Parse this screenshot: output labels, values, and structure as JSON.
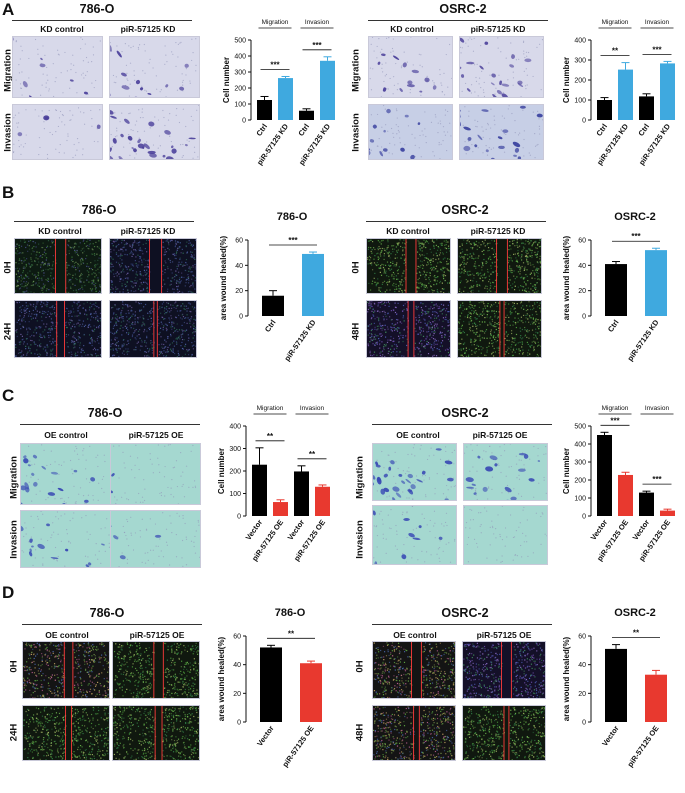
{
  "panels": [
    {
      "letter": "A",
      "cells": [
        {
          "cell_title": "786-O",
          "col_headers": [
            "KD control",
            "piR-57125 KD"
          ],
          "row_headers": [
            "Migration",
            "Invasion"
          ]
        },
        {
          "cell_title": "OSRC-2",
          "col_headers": [
            "KD control",
            "piR-57125 KD"
          ],
          "row_headers": [
            "Migration",
            "Invasion"
          ]
        }
      ]
    },
    {
      "letter": "B",
      "cells": [
        {
          "cell_title": "786-O",
          "col_headers": [
            "KD control",
            "piR-57125 KD"
          ],
          "row_headers": [
            "0H",
            "24H"
          ]
        },
        {
          "cell_title": "OSRC-2",
          "col_headers": [
            "KD control",
            "piR-57125 KD"
          ],
          "row_headers": [
            "0H",
            "48H"
          ]
        }
      ]
    },
    {
      "letter": "C",
      "cells": [
        {
          "cell_title": "786-O",
          "col_headers": [
            "OE control",
            "piR-57125 OE"
          ],
          "row_headers": [
            "Migration",
            "Invasion"
          ]
        },
        {
          "cell_title": "OSRC-2",
          "col_headers": [
            "OE control",
            "piR-57125 OE"
          ],
          "row_headers": [
            "Migration",
            "Invasion"
          ]
        }
      ]
    },
    {
      "letter": "D",
      "cells": [
        {
          "cell_title": "786-O",
          "col_headers": [
            "OE control",
            "piR-57125 OE"
          ],
          "row_headers": [
            "0H",
            "24H"
          ]
        },
        {
          "cell_title": "OSRC-2",
          "col_headers": [
            "OE control",
            "piR-57125 OE"
          ],
          "row_headers": [
            "0H",
            "48H"
          ]
        }
      ]
    }
  ],
  "colors": {
    "control": "#000000",
    "kd": "#3fa9df",
    "oe": "#e8392f",
    "transwell_kd_bg": "#d9dbea",
    "transwell_kd_cell": "#4a3f9a",
    "transwell_oe_bg": "#9fd6cf",
    "transwell_oe_cell": "#3b4bb0",
    "wound_edge": "#ff3b3b"
  },
  "chart_data": [
    {
      "id": "A-786O",
      "type": "bar",
      "title": "",
      "ylabel": "Cell number",
      "ylim": [
        0,
        500
      ],
      "yticks": [
        0,
        100,
        200,
        300,
        400,
        500
      ],
      "categories": [
        "Ctrl",
        "piR-57125 KD",
        "Ctrl",
        "piR-57125 KD"
      ],
      "values": [
        125,
        262,
        58,
        370
      ],
      "errors": [
        22,
        10,
        12,
        25
      ],
      "bar_colors": [
        "control",
        "kd",
        "control",
        "kd"
      ],
      "groups": [
        {
          "label": "Migration",
          "bars": [
            0,
            1
          ],
          "sig": "***"
        },
        {
          "label": "Invasion",
          "bars": [
            2,
            3
          ],
          "sig": "***"
        }
      ]
    },
    {
      "id": "A-OSRC2",
      "type": "bar",
      "title": "",
      "ylabel": "Cell number",
      "ylim": [
        0,
        400
      ],
      "yticks": [
        0,
        100,
        200,
        300,
        400
      ],
      "categories": [
        "Ctrl",
        "piR-57125 KD",
        "Ctrl",
        "piR-57125 KD"
      ],
      "values": [
        100,
        252,
        118,
        283
      ],
      "errors": [
        12,
        35,
        13,
        10
      ],
      "bar_colors": [
        "control",
        "kd",
        "control",
        "kd"
      ],
      "groups": [
        {
          "label": "Migration",
          "bars": [
            0,
            1
          ],
          "sig": "**"
        },
        {
          "label": "Invasion",
          "bars": [
            2,
            3
          ],
          "sig": "***"
        }
      ]
    },
    {
      "id": "B-786O",
      "type": "bar",
      "title": "786-O",
      "ylabel": "area wound healed(%)",
      "ylim": [
        0,
        60
      ],
      "yticks": [
        0,
        20,
        40,
        60
      ],
      "categories": [
        "Ctrl",
        "piR-57125 KD"
      ],
      "values": [
        16,
        49
      ],
      "errors": [
        4,
        1.5
      ],
      "bar_colors": [
        "control",
        "kd"
      ],
      "groups": [
        {
          "label": "",
          "bars": [
            0,
            1
          ],
          "sig": "***"
        }
      ]
    },
    {
      "id": "B-OSRC2",
      "type": "bar",
      "title": "OSRC-2",
      "ylabel": "area wound healed(%)",
      "ylim": [
        0,
        60
      ],
      "yticks": [
        0,
        20,
        40,
        60
      ],
      "categories": [
        "Ctrl",
        "piR-57125 KD"
      ],
      "values": [
        41,
        52
      ],
      "errors": [
        2,
        1.5
      ],
      "bar_colors": [
        "control",
        "kd"
      ],
      "groups": [
        {
          "label": "",
          "bars": [
            0,
            1
          ],
          "sig": "***"
        }
      ]
    },
    {
      "id": "C-786O",
      "type": "bar",
      "title": "",
      "ylabel": "Cell number",
      "ylim": [
        0,
        400
      ],
      "yticks": [
        0,
        100,
        200,
        300,
        400
      ],
      "categories": [
        "Vector",
        "piR-57125 OE",
        "Vector",
        "piR-57125 OE"
      ],
      "values": [
        228,
        62,
        198,
        130
      ],
      "errors": [
        75,
        10,
        25,
        8
      ],
      "bar_colors": [
        "control",
        "oe",
        "control",
        "oe"
      ],
      "groups": [
        {
          "label": "Migration",
          "bars": [
            0,
            1
          ],
          "sig": "**"
        },
        {
          "label": "Invasion",
          "bars": [
            2,
            3
          ],
          "sig": "**"
        }
      ]
    },
    {
      "id": "C-OSRC2",
      "type": "bar",
      "title": "",
      "ylabel": "Cell number",
      "ylim": [
        0,
        500
      ],
      "yticks": [
        0,
        100,
        200,
        300,
        400,
        500
      ],
      "categories": [
        "Vector",
        "piR-57125 OE",
        "Vector",
        "piR-57125 OE"
      ],
      "values": [
        450,
        228,
        130,
        30
      ],
      "errors": [
        15,
        15,
        8,
        8
      ],
      "bar_colors": [
        "control",
        "oe",
        "control",
        "oe"
      ],
      "groups": [
        {
          "label": "Migration",
          "bars": [
            0,
            1
          ],
          "sig": "***"
        },
        {
          "label": "Invasion",
          "bars": [
            2,
            3
          ],
          "sig": "***"
        }
      ]
    },
    {
      "id": "D-786O",
      "type": "bar",
      "title": "786-O",
      "ylabel": "area wound healed(%)",
      "ylim": [
        0,
        60
      ],
      "yticks": [
        0,
        20,
        40,
        60
      ],
      "categories": [
        "Vector",
        "piR-57125 OE"
      ],
      "values": [
        52,
        41
      ],
      "errors": [
        1.5,
        1.5
      ],
      "bar_colors": [
        "control",
        "oe"
      ],
      "groups": [
        {
          "label": "",
          "bars": [
            0,
            1
          ],
          "sig": "**"
        }
      ]
    },
    {
      "id": "D-OSRC2",
      "type": "bar",
      "title": "OSRC-2",
      "ylabel": "area wound healed(%)",
      "ylim": [
        0,
        60
      ],
      "yticks": [
        0,
        20,
        40,
        60
      ],
      "categories": [
        "Vector",
        "piR-57125 OE"
      ],
      "values": [
        51,
        33
      ],
      "errors": [
        3,
        3
      ],
      "bar_colors": [
        "control",
        "oe"
      ],
      "groups": [
        {
          "label": "",
          "bars": [
            0,
            1
          ],
          "sig": "**"
        }
      ]
    }
  ]
}
